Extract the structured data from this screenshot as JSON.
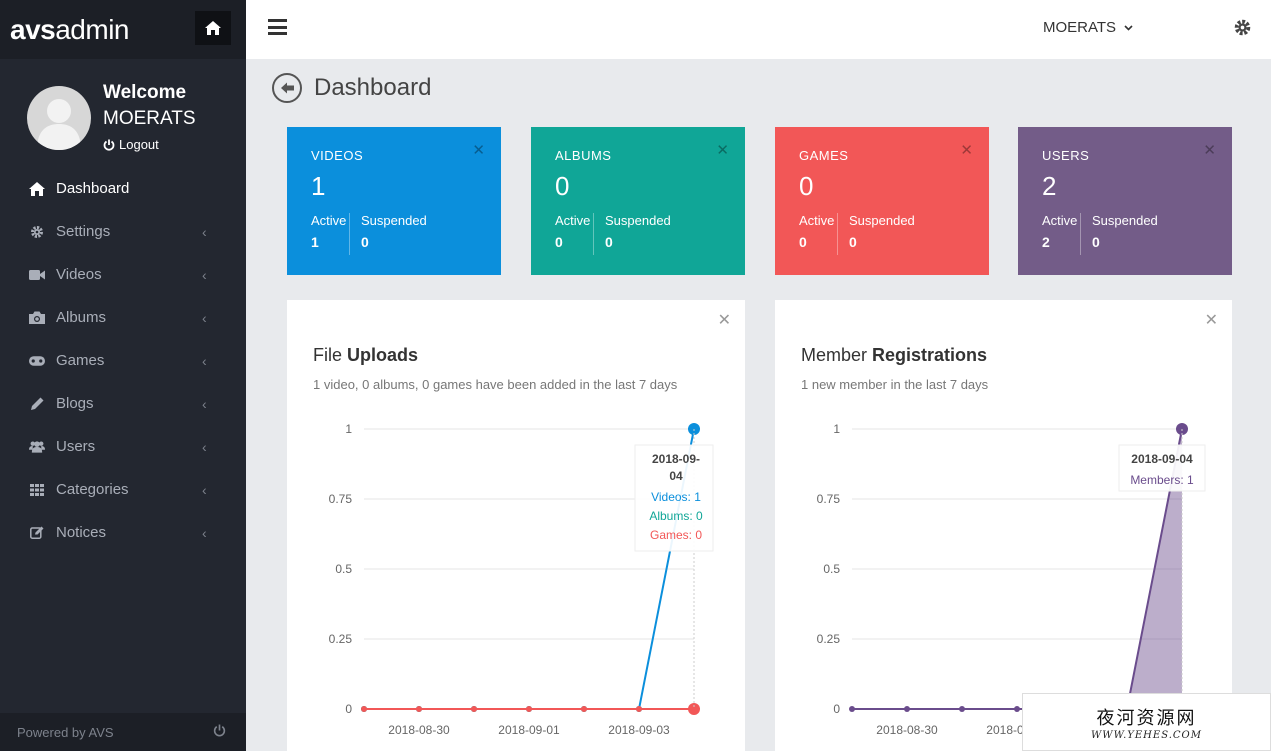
{
  "brand": {
    "part1": "avs",
    "part2": "admin"
  },
  "user_panel": {
    "welcome": "Welcome",
    "username": "MOERATS",
    "logout": "Logout"
  },
  "nav": [
    {
      "label": "Dashboard",
      "icon": "home-icon",
      "active": true
    },
    {
      "label": "Settings",
      "icon": "gear-icon"
    },
    {
      "label": "Videos",
      "icon": "video-camera-icon"
    },
    {
      "label": "Albums",
      "icon": "camera-icon"
    },
    {
      "label": "Games",
      "icon": "gamepad-icon"
    },
    {
      "label": "Blogs",
      "icon": "pencil-icon"
    },
    {
      "label": "Users",
      "icon": "users-icon"
    },
    {
      "label": "Categories",
      "icon": "grid-icon"
    },
    {
      "label": "Notices",
      "icon": "edit-icon"
    }
  ],
  "footer": {
    "text": "Powered by AVS"
  },
  "header": {
    "user": "MOERATS"
  },
  "page": {
    "title": "Dashboard"
  },
  "stats": [
    {
      "title": "VIDEOS",
      "total": "1",
      "active_label": "Active",
      "active": "1",
      "suspended_label": "Suspended",
      "suspended": "0",
      "color": "#0b8fdc"
    },
    {
      "title": "ALBUMS",
      "total": "0",
      "active_label": "Active",
      "active": "0",
      "suspended_label": "Suspended",
      "suspended": "0",
      "color": "#10a697"
    },
    {
      "title": "GAMES",
      "total": "0",
      "active_label": "Active",
      "active": "0",
      "suspended_label": "Suspended",
      "suspended": "0",
      "color": "#f25757"
    },
    {
      "title": "USERS",
      "total": "2",
      "active_label": "Active",
      "active": "2",
      "suspended_label": "Suspended",
      "suspended": "0",
      "color": "#735c88"
    }
  ],
  "uploads_panel": {
    "title_light": "File ",
    "title_bold": "Uploads",
    "subtitle": "1 video, 0 albums, 0 games have been added in the last 7 days",
    "tooltip": {
      "date_line1": "2018-09-",
      "date_line2": "04",
      "videos": "Videos: 1",
      "albums": "Albums: 0",
      "games": "Games: 0"
    }
  },
  "members_panel": {
    "title_light": "Member ",
    "title_bold": "Registrations",
    "subtitle": "1 new member in the last 7 days",
    "tooltip": {
      "date": "2018-09-04",
      "members": "Members: 1"
    }
  },
  "chart_data": [
    {
      "type": "line",
      "x": [
        "2018-08-29",
        "2018-08-30",
        "2018-08-31",
        "2018-09-01",
        "2018-09-02",
        "2018-09-03",
        "2018-09-04"
      ],
      "x_tick_labels": [
        "2018-08-30",
        "2018-09-01",
        "2018-09-03"
      ],
      "y_tick_labels": [
        "1",
        "0.75",
        "0.5",
        "0.25",
        "0"
      ],
      "ylim": [
        0,
        1
      ],
      "grid": true,
      "series": [
        {
          "name": "Videos",
          "values": [
            0,
            0,
            0,
            0,
            0,
            0,
            1
          ],
          "color": "#0b8fdc"
        },
        {
          "name": "Albums",
          "values": [
            0,
            0,
            0,
            0,
            0,
            0,
            0
          ],
          "color": "#10a697"
        },
        {
          "name": "Games",
          "values": [
            0,
            0,
            0,
            0,
            0,
            0,
            0
          ],
          "color": "#f25757"
        }
      ]
    },
    {
      "type": "area",
      "x": [
        "2018-08-29",
        "2018-08-30",
        "2018-08-31",
        "2018-09-01",
        "2018-09-02",
        "2018-09-03",
        "2018-09-04"
      ],
      "x_tick_labels": [
        "2018-08-30",
        "2018-09-01"
      ],
      "y_tick_labels": [
        "1",
        "0.75",
        "0.5",
        "0.25",
        "0"
      ],
      "ylim": [
        0,
        1
      ],
      "grid": true,
      "series": [
        {
          "name": "Members",
          "values": [
            0,
            0,
            0,
            0,
            0,
            0,
            1
          ],
          "color": "#6a4c8c"
        }
      ]
    }
  ],
  "watermark": {
    "text": "夜河资源网",
    "url": "WWW.YEHES.COM"
  }
}
